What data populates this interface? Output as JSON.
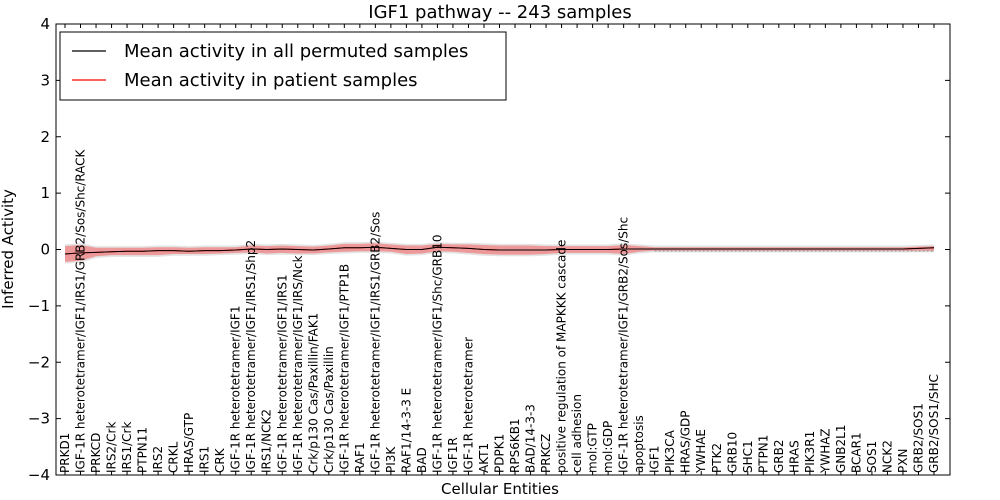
{
  "chart_data": {
    "type": "line",
    "title": "IGF1 pathway -- 243 samples",
    "xlabel": "Cellular Entities",
    "ylabel": "Inferred Activity",
    "ylim": [
      -4,
      4
    ],
    "yticks": [
      4,
      3,
      2,
      1,
      0,
      -1,
      -2,
      -3,
      -4
    ],
    "ytick_labels": [
      "4",
      "3",
      "2",
      "1",
      "0",
      "−1",
      "−2",
      "−3",
      "−4"
    ],
    "grid": false,
    "legend_position": "top-left",
    "colors": {
      "permuted": "#000000",
      "patient": "#ff0000",
      "patient_band": "#f08080",
      "permuted_band": "#c8c8c8"
    },
    "categories": [
      "PRKD1",
      "IGF-1R heterotetramer/IGF1/IRS1/GRB2/Sos/Shc/RACK",
      "PRKCD",
      "IRS2/Crk",
      "IRS1/Crk",
      "PTPN11",
      "IRS2",
      "CRKL",
      "HRAS/GTP",
      "IRS1",
      "CRK",
      "IGF-1R heterotetramer/IGF1",
      "IGF-1R heterotetramer/IGF1/IRS1/Shp2",
      "IRS1/NCK2",
      "IGF-1R heterotetramer/IGF1/IRS1",
      "IGF-1R heterotetramer/IGF1/IRS/Nck",
      "Crk/p130 Cas/Paxillin/FAK1",
      "Crk/p130 Cas/Paxillin",
      "IGF-1R heterotetramer/IGF1/PTP1B",
      "RAF1",
      "IGF-1R heterotetramer/IGF1/IRS1/GRB2/Sos",
      "PI3K",
      "RAF1/14-3-3 E",
      "BAD",
      "IGF-1R heterotetramer/IGF1/Shc/GRB10",
      "IGF1R",
      "IGF-1R heterotetramer",
      "AKT1",
      "PDPK1",
      "RPS6KB1",
      "BAD/14-3-3",
      "PRKCZ",
      "positive regulation of MAPKKK cascade",
      "cell adhesion",
      "mol:GTP",
      "mol:GDP",
      "IGF-1R heterotetramer/IGF1/GRB2/Sos/Shc",
      "apoptosis",
      "IGF1",
      "PIK3CA",
      "HRAS/GDP",
      "YWHAE",
      "PTK2",
      "GRB10",
      "SHC1",
      "PTPN1",
      "GRB2",
      "HRAS",
      "PIK3R1",
      "YWHAZ",
      "GNB2L1",
      "BCAR1",
      "SOS1",
      "NCK2",
      "PXN",
      "GRB2/SOS1",
      "GRB2/SOS1/SHC"
    ],
    "series": [
      {
        "name": "Mean activity in all permuted samples",
        "color": "#000000",
        "values": [
          -0.08,
          -0.06,
          -0.05,
          -0.04,
          -0.03,
          -0.03,
          -0.02,
          -0.02,
          -0.03,
          -0.02,
          -0.02,
          -0.01,
          0.01,
          0.0,
          0.01,
          0.0,
          -0.01,
          0.01,
          0.03,
          0.03,
          0.04,
          0.02,
          0.0,
          0.0,
          0.04,
          0.03,
          0.02,
          0.0,
          -0.01,
          -0.01,
          -0.01,
          -0.01,
          0.0,
          0.0,
          0.0,
          0.0,
          0.01,
          0.01,
          0.01,
          0.01,
          0.01,
          0.01,
          0.01,
          0.01,
          0.01,
          0.01,
          0.01,
          0.01,
          0.01,
          0.01,
          0.01,
          0.01,
          0.01,
          0.01,
          0.01,
          0.02,
          0.03
        ],
        "band_low": [
          -0.22,
          -0.2,
          -0.12,
          -0.1,
          -0.1,
          -0.1,
          -0.1,
          -0.08,
          -0.08,
          -0.08,
          -0.07,
          -0.06,
          -0.05,
          -0.07,
          -0.06,
          -0.07,
          -0.07,
          -0.05,
          -0.04,
          -0.03,
          -0.03,
          -0.04,
          -0.08,
          -0.07,
          -0.03,
          -0.04,
          -0.06,
          -0.08,
          -0.09,
          -0.09,
          -0.09,
          -0.08,
          -0.06,
          -0.06,
          -0.06,
          -0.06,
          -0.08,
          -0.04,
          -0.02,
          -0.02,
          -0.02,
          -0.02,
          -0.02,
          -0.02,
          -0.02,
          -0.02,
          -0.02,
          -0.02,
          -0.02,
          -0.02,
          -0.02,
          -0.02,
          -0.02,
          -0.02,
          -0.02,
          -0.02,
          -0.02
        ],
        "band_high": [
          0.06,
          0.08,
          0.03,
          0.03,
          0.03,
          0.03,
          0.04,
          0.04,
          0.03,
          0.04,
          0.04,
          0.04,
          0.07,
          0.06,
          0.07,
          0.06,
          0.05,
          0.07,
          0.1,
          0.1,
          0.11,
          0.09,
          0.07,
          0.07,
          0.1,
          0.09,
          0.09,
          0.08,
          0.07,
          0.07,
          0.07,
          0.06,
          0.06,
          0.06,
          0.06,
          0.06,
          0.08,
          0.06,
          0.04,
          0.04,
          0.04,
          0.04,
          0.04,
          0.04,
          0.04,
          0.04,
          0.04,
          0.04,
          0.04,
          0.04,
          0.04,
          0.04,
          0.04,
          0.04,
          0.04,
          0.05,
          0.06
        ]
      },
      {
        "name": "Mean activity in patient samples",
        "color": "#ff0000",
        "values": [
          -0.08,
          -0.06,
          -0.05,
          -0.04,
          -0.03,
          -0.03,
          -0.02,
          -0.02,
          -0.03,
          -0.02,
          -0.02,
          -0.01,
          0.01,
          0.0,
          0.01,
          0.0,
          -0.01,
          0.01,
          0.03,
          0.03,
          0.04,
          0.02,
          0.0,
          0.0,
          0.04,
          0.03,
          0.02,
          0.0,
          -0.01,
          -0.01,
          -0.01,
          -0.01,
          0.0,
          0.0,
          0.0,
          0.0,
          0.01,
          0.01,
          0.01,
          0.01,
          0.01,
          0.01,
          0.01,
          0.01,
          0.01,
          0.01,
          0.01,
          0.01,
          0.01,
          0.01,
          0.01,
          0.01,
          0.01,
          0.01,
          0.01,
          0.02,
          0.03
        ]
      }
    ]
  }
}
